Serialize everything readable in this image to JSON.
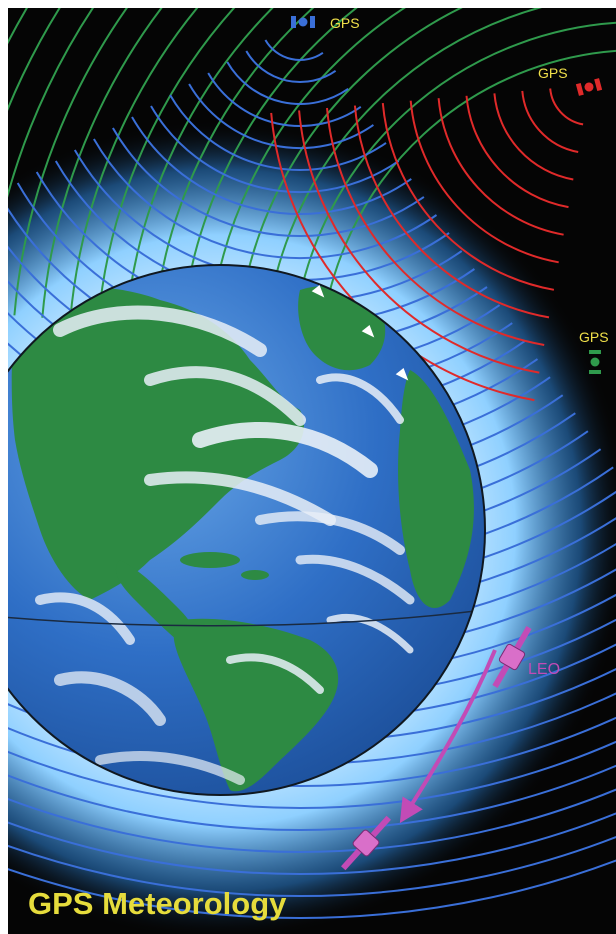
{
  "title": "GPS Meteorology",
  "satellites": {
    "gps_top": {
      "label": "GPS",
      "color": "#3a6fd8"
    },
    "gps_right": {
      "label": "GPS",
      "color": "#e02a2a"
    },
    "gps_side": {
      "label": "GPS",
      "color": "#2f9a4c"
    },
    "leo": {
      "label": "LEO",
      "color": "#c24bb6"
    }
  },
  "colors": {
    "space": "#050505",
    "ocean": "#2f6fc6",
    "land": "#2d8a43",
    "cloud": "#e8eff7",
    "glow": "#78c4ff",
    "title": "#e6dc3c",
    "gps_label": "#f0e04a"
  }
}
